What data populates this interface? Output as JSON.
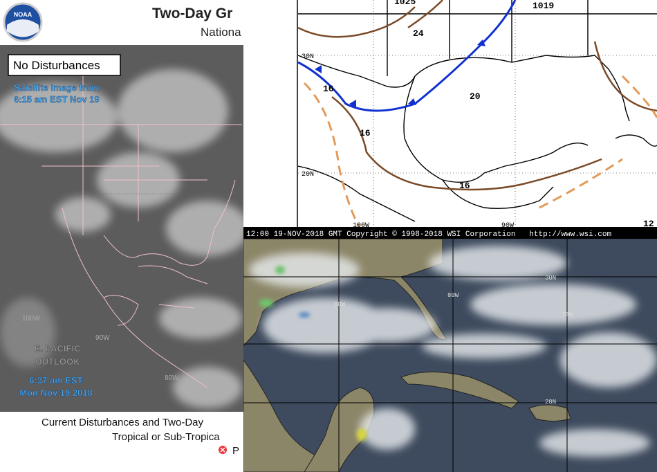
{
  "header": {
    "logo": "NOAA",
    "title": "Two-Day Gr",
    "subtitle": "Nationa"
  },
  "left_map": {
    "status": "No Disturbances",
    "satellite_time": [
      "Satellite Image from",
      "6:15 am EST Nov 19"
    ],
    "outlook": [
      "E. PACIFIC",
      "OUTLOOK"
    ],
    "outlook_time": [
      "6:37 am EST",
      "Mon Nov 19 2018"
    ],
    "lon_labels": [
      "100W",
      "90W",
      "80W"
    ]
  },
  "footer": {
    "lines": [
      "Current Disturbances and Two-Day",
      "Tropical or Sub-Tropica"
    ],
    "legend": "P"
  },
  "surface_map": {
    "isobars": [
      "1025",
      "1019",
      "24",
      "20",
      "16",
      "16",
      "16",
      "12"
    ],
    "lat_labels": [
      "30N",
      "20N"
    ],
    "lon_labels": [
      "100W",
      "90W"
    ]
  },
  "satellite": {
    "banner": "12:00 19-NOV-2018 GMT Copyright © 1998-2018 WSI Corporation   http://www.wsi.com",
    "lat_labels": [
      "30N",
      "20N"
    ],
    "lon_labels": [
      "90W",
      "80W",
      "70W"
    ]
  }
}
